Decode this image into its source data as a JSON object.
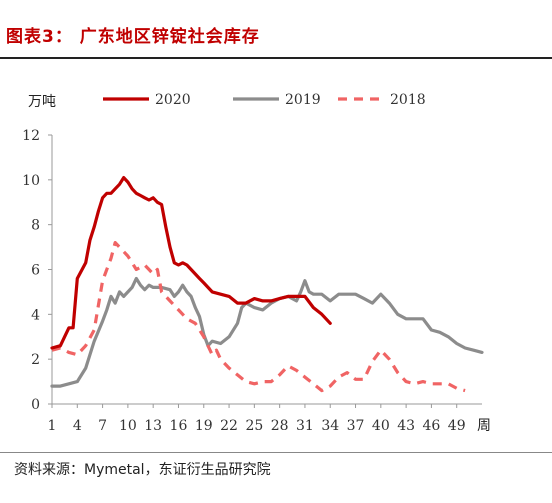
{
  "figure": {
    "title": "图表3：  广东地区锌锭社会库存",
    "source": "资料来源：Mymetal，东证衍生品研究院"
  },
  "chart_data": {
    "type": "line",
    "ylabel": "万吨",
    "xlabel": "周",
    "ylim": [
      0,
      12
    ],
    "xlim": [
      1,
      52
    ],
    "yticks": [
      0,
      2,
      4,
      6,
      8,
      10,
      12
    ],
    "xticks": [
      1,
      4,
      7,
      10,
      13,
      16,
      19,
      22,
      25,
      28,
      31,
      34,
      37,
      40,
      43,
      46,
      49
    ],
    "grid": false,
    "legend": "top",
    "series": [
      {
        "name": "2020",
        "color": "#c00000",
        "style": "solid",
        "x": [
          1,
          2,
          2.5,
          3,
          3.5,
          4,
          5,
          5.5,
          6,
          6.5,
          7,
          7.5,
          8,
          8.5,
          9,
          9.5,
          10,
          10.5,
          11,
          11.5,
          12,
          12.5,
          13,
          13.5,
          14,
          14.5,
          15,
          15.5,
          16,
          16.5,
          17,
          17.5,
          18,
          18.5,
          19,
          19.5,
          20,
          21,
          22,
          23,
          24,
          25,
          26,
          27,
          28,
          29,
          30,
          31,
          32,
          33,
          34
        ],
        "y": [
          2.5,
          2.6,
          3.0,
          3.4,
          3.4,
          5.6,
          6.3,
          7.3,
          7.9,
          8.6,
          9.2,
          9.4,
          9.4,
          9.6,
          9.8,
          10.1,
          9.9,
          9.6,
          9.4,
          9.3,
          9.2,
          9.1,
          9.2,
          9.0,
          8.9,
          7.9,
          7.0,
          6.3,
          6.2,
          6.3,
          6.2,
          6.0,
          5.8,
          5.6,
          5.4,
          5.2,
          5.0,
          4.9,
          4.8,
          4.5,
          4.5,
          4.7,
          4.6,
          4.6,
          4.7,
          4.8,
          4.8,
          4.8,
          4.3,
          4.0,
          3.6
        ]
      },
      {
        "name": "2019",
        "color": "#8c8c8c",
        "style": "solid",
        "x": [
          1,
          2,
          3,
          4,
          5,
          6,
          7,
          7.5,
          8,
          8.5,
          9,
          9.5,
          10,
          10.5,
          11,
          11.5,
          12,
          12.5,
          13,
          14,
          15,
          15.5,
          16,
          16.5,
          17,
          17.5,
          18,
          18.5,
          19,
          19.5,
          20,
          21,
          22,
          23,
          23.5,
          24,
          25,
          26,
          27,
          28,
          29,
          30,
          30.5,
          31,
          31.5,
          32,
          33,
          34,
          35,
          36,
          37,
          38,
          39,
          40,
          41,
          42,
          43,
          44,
          45,
          46,
          47,
          48,
          49,
          50,
          51,
          52
        ],
        "y": [
          0.8,
          0.8,
          0.9,
          1.0,
          1.6,
          2.8,
          3.7,
          4.2,
          4.8,
          4.5,
          5.0,
          4.8,
          5.0,
          5.2,
          5.6,
          5.3,
          5.1,
          5.3,
          5.2,
          5.2,
          5.1,
          4.8,
          5.0,
          5.3,
          5.0,
          4.8,
          4.3,
          3.9,
          3.1,
          2.6,
          2.8,
          2.7,
          3.0,
          3.6,
          4.3,
          4.5,
          4.3,
          4.2,
          4.5,
          4.7,
          4.8,
          4.6,
          5.0,
          5.5,
          5.0,
          4.9,
          4.9,
          4.6,
          4.9,
          4.9,
          4.9,
          4.7,
          4.5,
          4.9,
          4.5,
          4.0,
          3.8,
          3.8,
          3.8,
          3.3,
          3.2,
          3.0,
          2.7,
          2.5,
          2.4,
          2.3
        ]
      },
      {
        "name": "2018",
        "color": "#f06464",
        "style": "dashed",
        "x": [
          1,
          2,
          3,
          4,
          5,
          6,
          7,
          8,
          8.5,
          9,
          9.5,
          10,
          10.5,
          11,
          11.5,
          12,
          12.5,
          13,
          13.5,
          14,
          15,
          16,
          17,
          18,
          19,
          20,
          20.5,
          21,
          22,
          23,
          24,
          25,
          26,
          27,
          28,
          29,
          30,
          31,
          32,
          33,
          34,
          35,
          36,
          37,
          38,
          39,
          40,
          41,
          42,
          43,
          44,
          45,
          46,
          47,
          48,
          49,
          50
        ],
        "y": [
          2.4,
          2.5,
          2.3,
          2.2,
          2.6,
          3.3,
          5.5,
          6.5,
          7.2,
          7.0,
          6.8,
          6.6,
          6.3,
          6.0,
          6.1,
          6.2,
          6.0,
          5.8,
          6.0,
          5.0,
          4.6,
          4.2,
          3.8,
          3.6,
          3.0,
          2.2,
          2.4,
          2.0,
          1.6,
          1.3,
          1.0,
          0.9,
          1.0,
          1.0,
          1.3,
          1.7,
          1.5,
          1.2,
          0.9,
          0.6,
          0.8,
          1.2,
          1.4,
          1.1,
          1.1,
          1.9,
          2.4,
          2.0,
          1.4,
          1.0,
          0.9,
          1.0,
          0.9,
          0.9,
          0.9,
          0.7,
          0.6
        ]
      }
    ]
  }
}
